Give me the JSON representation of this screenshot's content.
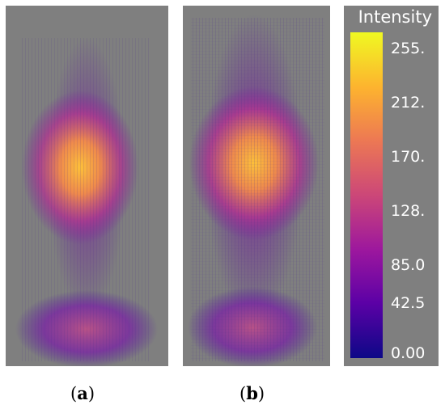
{
  "colorbar": {
    "title": "Intensity",
    "ticks": [
      "255.",
      "212.",
      "170.",
      "128.",
      "85.0",
      "42.5",
      "0.00"
    ],
    "range": [
      0,
      255
    ],
    "colors": [
      "#0d0887",
      "#5c01a6",
      "#9c179e",
      "#cc4778",
      "#ed7953",
      "#fdb32f",
      "#f0f921"
    ]
  },
  "captions": {
    "a_open": "(",
    "a_letter": "a",
    "a_close": ")",
    "b_open": "(",
    "b_letter": "b",
    "b_close": ")"
  },
  "background_color": "#7f7f7f"
}
